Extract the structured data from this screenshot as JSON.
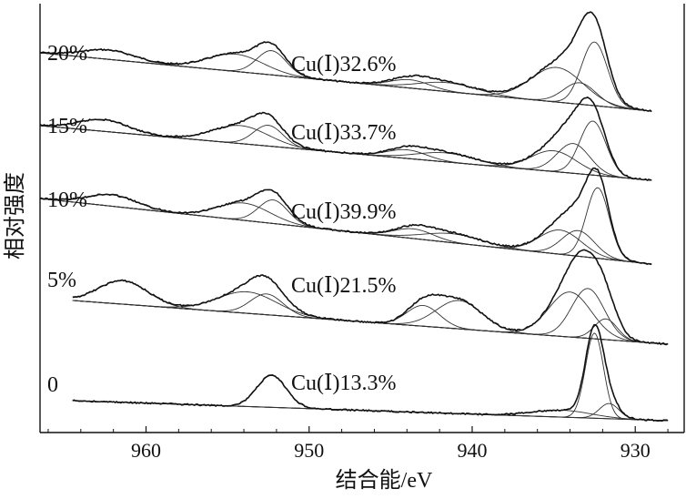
{
  "chart_data": {
    "type": "line",
    "xlabel": "结合能/eV",
    "ylabel": "相对强度",
    "xlim": [
      966.5,
      927.0
    ],
    "x_reversed": true,
    "x_ticks": [
      960,
      950,
      940,
      930
    ],
    "y_ticks": false,
    "grid": false,
    "series": [
      {
        "name": "20%",
        "annotation": "Cu(Ⅰ)32.6%",
        "baseline": {
          "x_start": 966.5,
          "x_end": 929.0
        },
        "peaks": [
          {
            "center": 962.3,
            "height": 0.27,
            "width": 1.6
          },
          {
            "center": 954.5,
            "height": 0.5,
            "width": 1.7
          },
          {
            "center": 952.3,
            "height": 0.7,
            "width": 0.9
          },
          {
            "center": 943.8,
            "height": 0.24,
            "width": 1.2
          },
          {
            "center": 941.5,
            "height": 0.26,
            "width": 1.8
          },
          {
            "center": 934.8,
            "height": 1.0,
            "width": 1.6
          },
          {
            "center": 933.4,
            "height": 0.62,
            "width": 1.0
          },
          {
            "center": 932.5,
            "height": 1.84,
            "width": 0.8
          }
        ]
      },
      {
        "name": "15%",
        "annotation": "Cu(Ⅰ)33.7%",
        "baseline": {
          "x_start": 966.5,
          "x_end": 929.0
        },
        "peaks": [
          {
            "center": 962.6,
            "height": 0.34,
            "width": 1.5
          },
          {
            "center": 954.2,
            "height": 0.52,
            "width": 1.7
          },
          {
            "center": 952.5,
            "height": 0.6,
            "width": 0.9
          },
          {
            "center": 944.0,
            "height": 0.25,
            "width": 1.2
          },
          {
            "center": 941.6,
            "height": 0.26,
            "width": 1.8
          },
          {
            "center": 935.0,
            "height": 0.6,
            "width": 1.4
          },
          {
            "center": 933.8,
            "height": 0.86,
            "width": 1.0
          },
          {
            "center": 932.6,
            "height": 1.56,
            "width": 0.8
          }
        ]
      },
      {
        "name": "10%",
        "annotation": "Cu(Ⅰ)39.9%",
        "baseline": {
          "x_start": 966.5,
          "x_end": 929.0
        },
        "peaks": [
          {
            "center": 962.1,
            "height": 0.33,
            "width": 1.5
          },
          {
            "center": 954.0,
            "height": 0.5,
            "width": 1.6
          },
          {
            "center": 952.2,
            "height": 0.68,
            "width": 0.9
          },
          {
            "center": 943.6,
            "height": 0.28,
            "width": 1.2
          },
          {
            "center": 941.2,
            "height": 0.26,
            "width": 1.8
          },
          {
            "center": 934.6,
            "height": 0.7,
            "width": 1.3
          },
          {
            "center": 933.5,
            "height": 0.74,
            "width": 1.0
          },
          {
            "center": 932.3,
            "height": 2.04,
            "width": 0.7
          }
        ]
      },
      {
        "name": "5%",
        "annotation": "Cu(Ⅰ)21.5%",
        "baseline": {
          "x_start": 964.5,
          "x_end": 928.0
        },
        "peaks": [
          {
            "center": 961.4,
            "height": 0.68,
            "width": 1.5
          },
          {
            "center": 953.8,
            "height": 0.62,
            "width": 1.8
          },
          {
            "center": 952.6,
            "height": 0.6,
            "width": 1.0
          },
          {
            "center": 943.0,
            "height": 0.6,
            "width": 1.0
          },
          {
            "center": 940.8,
            "height": 0.82,
            "width": 1.4
          },
          {
            "center": 934.0,
            "height": 1.3,
            "width": 1.3
          },
          {
            "center": 932.9,
            "height": 1.44,
            "width": 1.0
          },
          {
            "center": 931.8,
            "height": 0.6,
            "width": 0.7
          }
        ]
      },
      {
        "name": "0",
        "annotation": "Cu(Ⅰ)13.3%",
        "baseline": {
          "x_start": 964.5,
          "x_end": 928.0
        },
        "peaks": [
          {
            "center": 952.3,
            "height": 0.92,
            "width": 0.9
          },
          {
            "center": 934.5,
            "height": 0.2,
            "width": 1.8
          },
          {
            "center": 932.5,
            "height": 2.46,
            "width": 0.55
          },
          {
            "center": 931.6,
            "height": 0.44,
            "width": 0.6
          }
        ]
      }
    ]
  }
}
